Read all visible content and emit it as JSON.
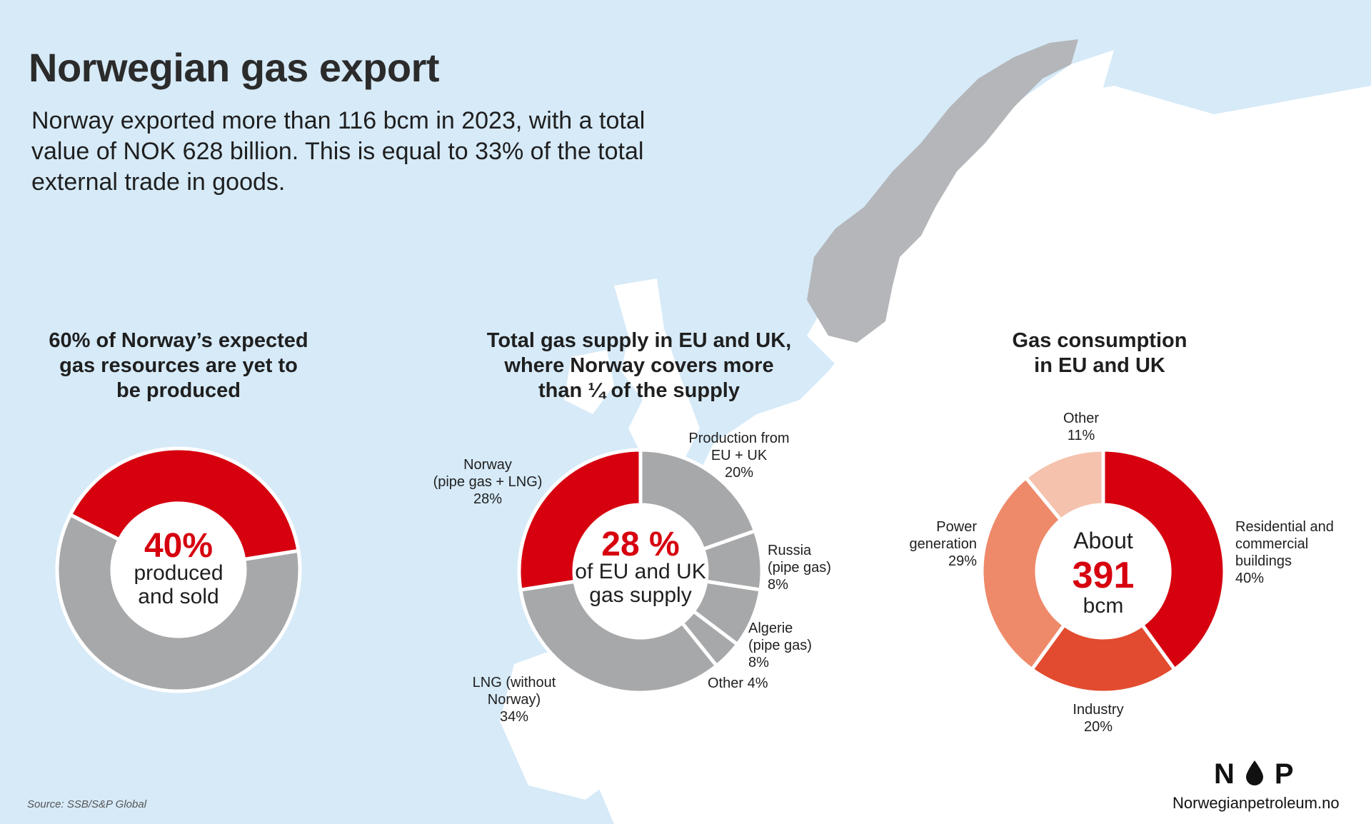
{
  "header": {
    "title": "Norwegian gas export",
    "subtitle": "Norway exported more than 116 bcm in 2023, with a total value of NOK 628 billion. This is equal to 33% of the total external trade in goods."
  },
  "chart_data": [
    {
      "type": "pie",
      "title_lines": [
        "60% of Norway’s expected",
        "gas resources are yet to",
        "be produced"
      ],
      "center": {
        "big": "40%",
        "line1": "produced",
        "line2": "and sold"
      },
      "slices": [
        {
          "label": "produced and sold",
          "value": 40,
          "color": "#d6000f"
        },
        {
          "label": "yet to be produced",
          "value": 60,
          "color": "#a7a8aa"
        }
      ]
    },
    {
      "type": "pie",
      "title_lines": [
        "Total gas supply in EU and UK,",
        "where Norway covers more",
        "than ¼ of the supply"
      ],
      "center": {
        "big": "28 %",
        "line1": "of EU and UK",
        "line2": "gas supply"
      },
      "slices": [
        {
          "label": [
            "Production from",
            "EU + UK",
            "20%"
          ],
          "value": 20,
          "color": "#a7a8aa"
        },
        {
          "label": [
            "Russia",
            "(pipe gas)",
            "8%"
          ],
          "value": 8,
          "color": "#a7a8aa"
        },
        {
          "label": [
            "Algerie",
            "(pipe gas)",
            "8%"
          ],
          "value": 8,
          "color": "#a7a8aa"
        },
        {
          "label": [
            "Other 4%"
          ],
          "value": 4,
          "color": "#a7a8aa"
        },
        {
          "label": [
            "LNG (without",
            "Norway)",
            "34%"
          ],
          "value": 34,
          "color": "#a7a8aa"
        },
        {
          "label": [
            "Norway",
            "(pipe gas + LNG)",
            "28%"
          ],
          "value": 28,
          "color": "#d6000f"
        }
      ]
    },
    {
      "type": "pie",
      "title_lines": [
        "Gas consumption",
        "in EU and UK"
      ],
      "center": {
        "line0": "About",
        "big": "391",
        "line2": "bcm"
      },
      "slices": [
        {
          "label": [
            "Residential and",
            "commercial",
            "buildings",
            "40%"
          ],
          "value": 40,
          "color": "#d6000f"
        },
        {
          "label": [
            "Industry",
            "20%"
          ],
          "value": 20,
          "color": "#e24b2f"
        },
        {
          "label": [
            "Power",
            "generation",
            "29%"
          ],
          "value": 29,
          "color": "#ee8a6a"
        },
        {
          "label": [
            "Other",
            "11%"
          ],
          "value": 11,
          "color": "#f5c2ad"
        }
      ]
    }
  ],
  "footer": {
    "source": "Source: SSB/S&P Global",
    "logo_left": "N",
    "logo_right": "P",
    "site": "Norwegianpetroleum.no"
  },
  "colors": {
    "red": "#d6000f",
    "grey": "#a7a8aa",
    "sea": "#d6eaf8",
    "land": "#ffffff",
    "norway": "#b4b6b9"
  }
}
